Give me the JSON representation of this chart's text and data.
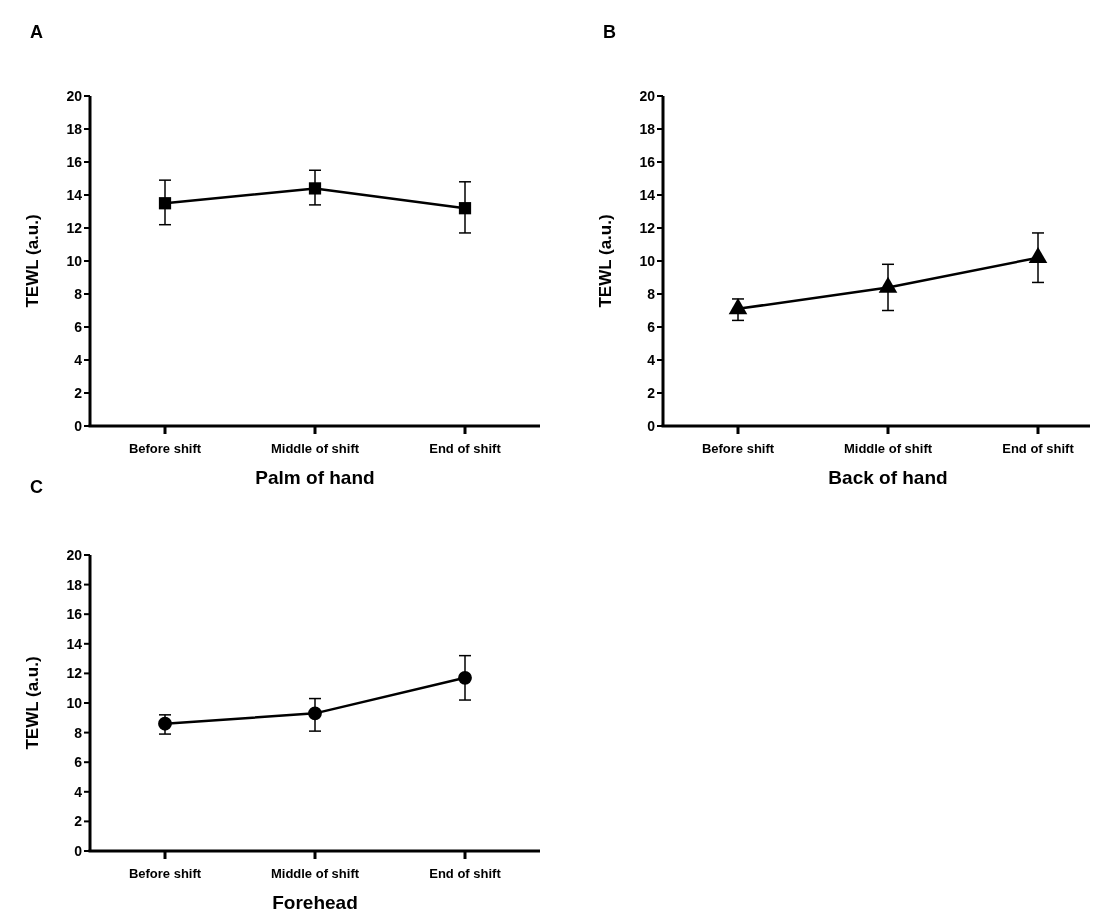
{
  "chart_data": [
    {
      "type": "line",
      "title": "A",
      "xlabel": "Palm of hand",
      "ylabel": "TEWL (a.u.)",
      "categories": [
        "Before shift",
        "Middle of shift",
        "End of shift"
      ],
      "series": [
        {
          "color": "#000000",
          "values": [
            13.5,
            14.4,
            13.2
          ],
          "errors": [
            [
              12.2,
              14.9
            ],
            [
              13.4,
              15.5
            ],
            [
              11.7,
              14.8
            ]
          ]
        }
      ],
      "ylim": [
        0,
        20
      ],
      "yticks": [
        0,
        2,
        4,
        6,
        8,
        10,
        12,
        14,
        16,
        18,
        20
      ],
      "marker": "square",
      "grid": false
    },
    {
      "type": "line",
      "title": "B",
      "xlabel": "Back of hand",
      "ylabel": "TEWL (a.u.)",
      "categories": [
        "Before shift",
        "Middle of shift",
        "End of shift"
      ],
      "series": [
        {
          "color": "#000000",
          "values": [
            7.1,
            8.4,
            10.2
          ],
          "errors": [
            [
              6.4,
              7.7
            ],
            [
              7.0,
              9.8
            ],
            [
              8.7,
              11.7
            ]
          ]
        }
      ],
      "ylim": [
        0,
        20
      ],
      "yticks": [
        0,
        2,
        4,
        6,
        8,
        10,
        12,
        14,
        16,
        18,
        20
      ],
      "marker": "triangle",
      "grid": false
    },
    {
      "type": "line",
      "title": "C",
      "xlabel": "Forehead",
      "ylabel": "TEWL (a.u.)",
      "categories": [
        "Before shift",
        "Middle of shift",
        "End of shift"
      ],
      "series": [
        {
          "color": "#000000",
          "values": [
            8.6,
            9.3,
            11.7
          ],
          "errors": [
            [
              7.9,
              9.2
            ],
            [
              8.1,
              10.3
            ],
            [
              10.2,
              13.2
            ]
          ]
        }
      ],
      "ylim": [
        0,
        20
      ],
      "yticks": [
        0,
        2,
        4,
        6,
        8,
        10,
        12,
        14,
        16,
        18,
        20
      ],
      "marker": "circle",
      "grid": false
    }
  ]
}
